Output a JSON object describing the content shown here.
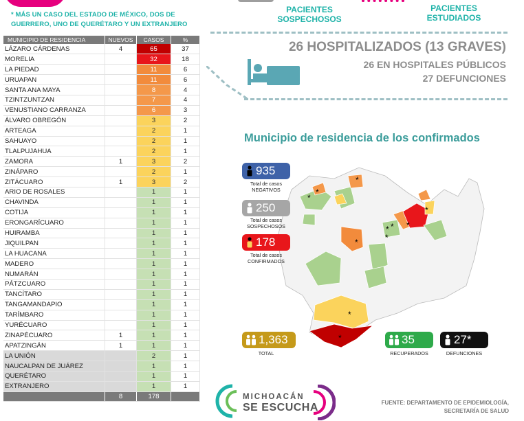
{
  "note": "* MÁS UN CASO DEL ESTADO DE MÉXICO, DOS DE GUERRERO, UNO DE QUERÉTARO Y UN EXTRANJERO",
  "table": {
    "headers": [
      "MUNICIPIO DE RESIDENCIA",
      "NUEVOS",
      "CASOS",
      "%"
    ],
    "rows": [
      {
        "name": "LÁZARO CÁRDENAS",
        "nuevos": "4",
        "casos": "65",
        "pct": "37",
        "color": "#c00000",
        "tc": "#fff"
      },
      {
        "name": "MORELIA",
        "nuevos": "",
        "casos": "32",
        "pct": "18",
        "color": "#e8161b",
        "tc": "#fff"
      },
      {
        "name": "LA PIEDAD",
        "nuevos": "",
        "casos": "11",
        "pct": "6",
        "color": "#f28b3c",
        "tc": "#fff"
      },
      {
        "name": "URUAPAN",
        "nuevos": "",
        "casos": "11",
        "pct": "6",
        "color": "#f28b3c",
        "tc": "#fff"
      },
      {
        "name": "SANTA ANA MAYA",
        "nuevos": "",
        "casos": "8",
        "pct": "4",
        "color": "#f4984a",
        "tc": "#fff"
      },
      {
        "name": "TZINTZUNTZAN",
        "nuevos": "",
        "casos": "7",
        "pct": "4",
        "color": "#f4984a",
        "tc": "#fff"
      },
      {
        "name": "VENUSTIANO CARRANZA",
        "nuevos": "",
        "casos": "6",
        "pct": "3",
        "color": "#f4984a",
        "tc": "#fff"
      },
      {
        "name": "ÁLVARO OBREGÓN",
        "nuevos": "",
        "casos": "3",
        "pct": "2",
        "color": "#fbd35c",
        "tc": "#333"
      },
      {
        "name": "ARTEAGA",
        "nuevos": "",
        "casos": "2",
        "pct": "1",
        "color": "#fbd35c",
        "tc": "#333"
      },
      {
        "name": "SAHUAYO",
        "nuevos": "",
        "casos": "2",
        "pct": "1",
        "color": "#fbd35c",
        "tc": "#333"
      },
      {
        "name": "TLALPUJAHUA",
        "nuevos": "",
        "casos": "2",
        "pct": "1",
        "color": "#fbd35c",
        "tc": "#333"
      },
      {
        "name": "ZAMORA",
        "nuevos": "1",
        "casos": "3",
        "pct": "2",
        "color": "#fbd35c",
        "tc": "#333"
      },
      {
        "name": "ZINÁPARO",
        "nuevos": "",
        "casos": "2",
        "pct": "1",
        "color": "#fbd35c",
        "tc": "#333"
      },
      {
        "name": "ZITÁCUARO",
        "nuevos": "1",
        "casos": "3",
        "pct": "2",
        "color": "#fbd35c",
        "tc": "#333"
      },
      {
        "name": "ARIO DE ROSALES",
        "nuevos": "",
        "casos": "1",
        "pct": "1",
        "color": "#c6e0b4",
        "tc": "#333"
      },
      {
        "name": "CHAVINDA",
        "nuevos": "",
        "casos": "1",
        "pct": "1",
        "color": "#c6e0b4",
        "tc": "#333"
      },
      {
        "name": "COTIJA",
        "nuevos": "",
        "casos": "1",
        "pct": "1",
        "color": "#c6e0b4",
        "tc": "#333"
      },
      {
        "name": "ERONGARÍCUARO",
        "nuevos": "",
        "casos": "1",
        "pct": "1",
        "color": "#c6e0b4",
        "tc": "#333"
      },
      {
        "name": "HUIRAMBA",
        "nuevos": "",
        "casos": "1",
        "pct": "1",
        "color": "#c6e0b4",
        "tc": "#333"
      },
      {
        "name": "JIQUILPAN",
        "nuevos": "",
        "casos": "1",
        "pct": "1",
        "color": "#c6e0b4",
        "tc": "#333"
      },
      {
        "name": "LA HUACANA",
        "nuevos": "",
        "casos": "1",
        "pct": "1",
        "color": "#c6e0b4",
        "tc": "#333"
      },
      {
        "name": "MADERO",
        "nuevos": "",
        "casos": "1",
        "pct": "1",
        "color": "#c6e0b4",
        "tc": "#333"
      },
      {
        "name": "NUMARÁN",
        "nuevos": "",
        "casos": "1",
        "pct": "1",
        "color": "#c6e0b4",
        "tc": "#333"
      },
      {
        "name": "PÁTZCUARO",
        "nuevos": "",
        "casos": "1",
        "pct": "1",
        "color": "#c6e0b4",
        "tc": "#333"
      },
      {
        "name": "TANCÍTARO",
        "nuevos": "",
        "casos": "1",
        "pct": "1",
        "color": "#c6e0b4",
        "tc": "#333"
      },
      {
        "name": "TANGAMANDAPIO",
        "nuevos": "",
        "casos": "1",
        "pct": "1",
        "color": "#c6e0b4",
        "tc": "#333"
      },
      {
        "name": "TARÍMBARO",
        "nuevos": "",
        "casos": "1",
        "pct": "1",
        "color": "#c6e0b4",
        "tc": "#333"
      },
      {
        "name": "YURÉCUARO",
        "nuevos": "",
        "casos": "1",
        "pct": "1",
        "color": "#c6e0b4",
        "tc": "#333"
      },
      {
        "name": "ZINAPÉCUARO",
        "nuevos": "1",
        "casos": "1",
        "pct": "1",
        "color": "#c6e0b4",
        "tc": "#333"
      },
      {
        "name": "APATZINGÁN",
        "nuevos": "1",
        "casos": "1",
        "pct": "1",
        "color": "#c6e0b4",
        "tc": "#333"
      },
      {
        "name": "LA UNIÓN",
        "nuevos": "",
        "casos": "2",
        "pct": "1",
        "color": "#c6e0b4",
        "tc": "#333",
        "grey": true
      },
      {
        "name": "NAUCALPAN DE JUÁREZ",
        "nuevos": "",
        "casos": "1",
        "pct": "1",
        "color": "#c6e0b4",
        "tc": "#333",
        "grey": true
      },
      {
        "name": "QUERÉTARO",
        "nuevos": "",
        "casos": "1",
        "pct": "1",
        "color": "#c6e0b4",
        "tc": "#333",
        "grey": true
      },
      {
        "name": "EXTRANJERO",
        "nuevos": "",
        "casos": "1",
        "pct": "1",
        "color": "#c6e0b4",
        "tc": "#333",
        "grey": true
      }
    ],
    "total_nuevos": "8",
    "total_casos": "178"
  },
  "header": {
    "sospechosos": "PACIENTES SOSPECHOSOS",
    "estudiados": "PACIENTES ESTUDIADOS",
    "hospitalizados": "26 HOSPITALIZADOS (13 GRAVES)",
    "publicos": "26 EN HOSPITALES PÚBLICOS",
    "defunciones": "27 DEFUNCIONES",
    "bed_icon": "hospital-bed-icon"
  },
  "map": {
    "title": "Municipio de residencia de los confirmados",
    "negativos": {
      "value": "935",
      "label": "Total de casos NEGATIVOS",
      "color": "#3e62a8"
    },
    "sospechosos": {
      "value": "250",
      "label": "Total de casos SOSPECHOSOS",
      "color": "#a6a6a6"
    },
    "confirmados": {
      "value": "178",
      "label": "Total de casos CONFIRMADOS",
      "color": "#e8161b"
    },
    "total": {
      "value": "1,363",
      "label": "TOTAL",
      "color": "#c59a1a"
    },
    "recuperados": {
      "value": "35",
      "label": "RECUPERADOS",
      "color": "#2eaa4a"
    },
    "defunciones": {
      "value": "27*",
      "label": "DEFUNCIONES",
      "color": "#111111"
    }
  },
  "footer": {
    "fuente_1": "FUENTE: DEPARTAMENTO DE EPIDEMIOLOGÍA,",
    "fuente_2": "SECRETARÍA DE SALUD",
    "logo_1": "MICHOACÁN",
    "logo_2": "SE ESCUCHA"
  }
}
